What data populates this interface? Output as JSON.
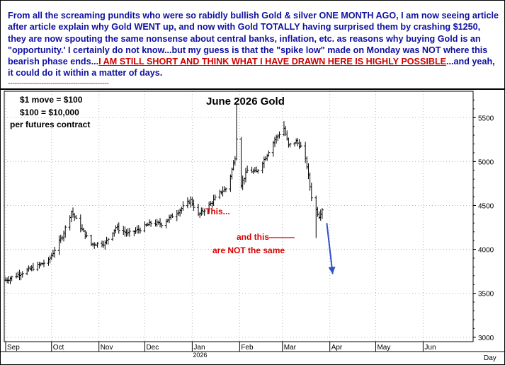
{
  "commentary": {
    "text": "From all the screaming pundits who were so rabidly bullish Gold & silver ONE MONTH AGO, I am now seeing article after article explain why Gold WENT up, and now with Gold TOTALLY having surprised them by crashing $1250, they are now spouting the same nonsense about central banks, inflation, etc. as reasons why buying Gold is an \"opportunity.' I certainly do not know...but my guess is that the \"spike low\" made on Monday was NOT where this bearish phase ends...",
    "emphasis": "I AM STILL SHORT AND THINK WHAT I HAVE DRAWN HERE IS HIGHLY POSSIBLE",
    "tail": "...and yeah, it could do it within a matter of days.",
    "dashes": "---------------------------------------------"
  },
  "annotations": {
    "move_line1": "$1 move = $100",
    "move_line2": "$100 = $10,000",
    "move_line3": "per futures contract",
    "this_label": "This...",
    "and_this": "and this———",
    "not_same": "are NOT the same"
  },
  "colors": {
    "commentary_text": "#1010a0",
    "emphasis": "#cc0000",
    "bars": "#000000",
    "arrow": "#3050c8",
    "grid": "#b8b8b8"
  },
  "chart_data": {
    "type": "ohlc",
    "title": "June 2026 Gold",
    "x_unit_label": "Day",
    "year_label": "2026",
    "x_ticks": [
      "Sep",
      "Oct",
      "Nov",
      "Dec",
      "Jan",
      "Feb",
      "Mar",
      "Apr",
      "May",
      "Jun"
    ],
    "y_ticks": [
      3000,
      3500,
      4000,
      4500,
      5000,
      5500
    ],
    "ylim": [
      2950,
      5800
    ],
    "grid": true,
    "anchors": [
      {
        "date": "Sep 1",
        "close": 3650
      },
      {
        "date": "Sep 15",
        "close": 3760
      },
      {
        "date": "Sep 29",
        "close": 3870
      },
      {
        "date": "Oct 8",
        "close": 4150
      },
      {
        "date": "Oct 14",
        "close": 4430
      },
      {
        "date": "Oct 20",
        "close": 4250
      },
      {
        "date": "Oct 27",
        "close": 4060
      },
      {
        "date": "Nov 5",
        "close": 4070
      },
      {
        "date": "Nov 12",
        "close": 4250
      },
      {
        "date": "Nov 20",
        "close": 4180
      },
      {
        "date": "Nov 28",
        "close": 4230
      },
      {
        "date": "Dec 5",
        "close": 4300
      },
      {
        "date": "Dec 12",
        "close": 4290
      },
      {
        "date": "Dec 22",
        "close": 4420
      },
      {
        "date": "Dec 31",
        "close": 4560
      },
      {
        "date": "Jan 5",
        "close": 4390
      },
      {
        "date": "Jan 12",
        "close": 4500
      },
      {
        "date": "Jan 20",
        "close": 4660
      },
      {
        "date": "Jan 24",
        "close": 4700
      },
      {
        "date": "Jan 29",
        "close": 5050
      },
      {
        "date": "Jan 31",
        "close": 5500
      },
      {
        "date": "Feb 2",
        "close": 4740
      },
      {
        "date": "Feb 6",
        "close": 4900
      },
      {
        "date": "Feb 12",
        "close": 4880
      },
      {
        "date": "Feb 18",
        "close": 5050
      },
      {
        "date": "Feb 24",
        "close": 5250
      },
      {
        "date": "Mar 2",
        "close": 5380
      },
      {
        "date": "Mar 5",
        "close": 5180
      },
      {
        "date": "Mar 10",
        "close": 5230
      },
      {
        "date": "Mar 14",
        "close": 5150
      },
      {
        "date": "Mar 17",
        "close": 4950
      },
      {
        "date": "Mar 20",
        "close": 4600
      },
      {
        "date": "Mar 23",
        "close": 4450
      },
      {
        "date": "Mar 25",
        "close": 4380
      },
      {
        "date": "Mar 28",
        "close": 4500
      }
    ],
    "events": [
      {
        "label": "spike low (This...)",
        "date": "Feb 1",
        "low": 4440
      },
      {
        "label": "spike low (and this)",
        "date": "Mar 23",
        "low": 4130
      },
      {
        "label": "projection arrow",
        "from_date": "Mar 30",
        "from_value": 4300,
        "to_date": "Apr 1",
        "to_value": 3720
      }
    ]
  }
}
